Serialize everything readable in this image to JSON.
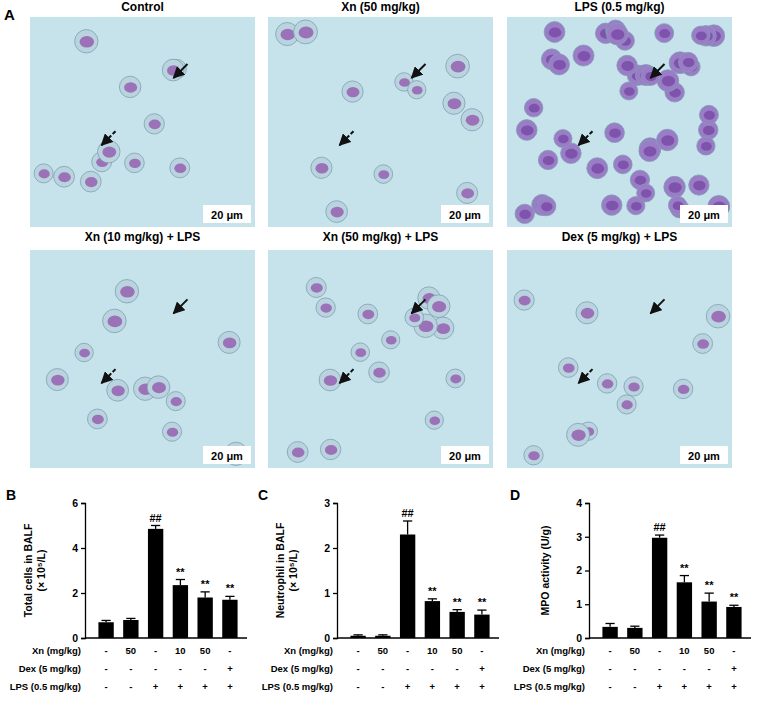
{
  "panel_a": {
    "label": "A",
    "scale_bar": "20 μm",
    "images": [
      {
        "title": "Control"
      },
      {
        "title": "Xn (50 mg/kg)"
      },
      {
        "title": "LPS (0.5 mg/kg)"
      },
      {
        "title": "Xn (10 mg/kg) + LPS"
      },
      {
        "title": "Xn (50 mg/kg) + LPS"
      },
      {
        "title": "Dex (5 mg/kg) + LPS"
      }
    ]
  },
  "chart_data": [
    {
      "type": "bar",
      "panel_label": "B",
      "y_label": [
        "Total cells in BALF",
        "(× 10⁵/L)"
      ],
      "categories": [
        null,
        null,
        null,
        null,
        null,
        null
      ],
      "values": [
        0.7,
        0.8,
        4.85,
        2.35,
        1.8,
        1.7
      ],
      "errors": [
        0.08,
        0.07,
        0.15,
        0.25,
        0.25,
        0.15
      ],
      "annotations": [
        null,
        null,
        "##",
        "**",
        "**",
        "**"
      ],
      "treatment_rows": [
        {
          "label": "Xn (mg/kg)",
          "values": [
            "-",
            "50",
            "-",
            "10",
            "50",
            "-"
          ]
        },
        {
          "label": "Dex (5 mg/kg)",
          "values": [
            "-",
            "-",
            "-",
            "-",
            "-",
            "+"
          ]
        },
        {
          "label": "LPS (0.5 mg/kg)",
          "values": [
            "-",
            "-",
            "+",
            "+",
            "+",
            "+"
          ]
        }
      ],
      "color": "#000000",
      "ylim": [
        0,
        6
      ],
      "yticks": [
        0,
        2,
        4,
        6
      ],
      "grid": false
    },
    {
      "type": "bar",
      "panel_label": "C",
      "y_label": [
        "Neutrophil in BALF",
        "(× 10⁵/L)"
      ],
      "categories": [
        null,
        null,
        null,
        null,
        null,
        null
      ],
      "values": [
        0.05,
        0.05,
        2.3,
        0.82,
        0.58,
        0.52
      ],
      "errors": [
        0.02,
        0.02,
        0.3,
        0.05,
        0.05,
        0.1
      ],
      "annotations": [
        null,
        null,
        "##",
        "**",
        "**",
        "**"
      ],
      "treatment_rows": [
        {
          "label": "Xn (mg/kg)",
          "values": [
            "-",
            "50",
            "-",
            "10",
            "50",
            "-"
          ]
        },
        {
          "label": "Dex (5 mg/kg)",
          "values": [
            "-",
            "-",
            "-",
            "-",
            "-",
            "+"
          ]
        },
        {
          "label": "LPS (0.5 mg/kg)",
          "values": [
            "-",
            "-",
            "+",
            "+",
            "+",
            "+"
          ]
        }
      ],
      "color": "#000000",
      "ylim": [
        0,
        3
      ],
      "yticks": [
        0,
        1,
        2,
        3
      ],
      "grid": false
    },
    {
      "type": "bar",
      "panel_label": "D",
      "y_label": [
        "MPO activity (U/g)"
      ],
      "categories": [
        null,
        null,
        null,
        null,
        null,
        null
      ],
      "values": [
        0.33,
        0.3,
        2.97,
        1.65,
        1.08,
        0.92
      ],
      "errors": [
        0.1,
        0.05,
        0.08,
        0.2,
        0.25,
        0.05
      ],
      "annotations": [
        null,
        null,
        "##",
        "**",
        "**",
        "**"
      ],
      "treatment_rows": [
        {
          "label": "Xn (mg/kg)",
          "values": [
            "-",
            "50",
            "-",
            "10",
            "50",
            "-"
          ]
        },
        {
          "label": "Dex (5 mg/kg)",
          "values": [
            "-",
            "-",
            "-",
            "-",
            "-",
            "+"
          ]
        },
        {
          "label": "LPS (0.5 mg/kg)",
          "values": [
            "-",
            "-",
            "+",
            "+",
            "+",
            "+"
          ]
        }
      ],
      "color": "#000000",
      "ylim": [
        0,
        4
      ],
      "yticks": [
        0,
        1,
        2,
        3,
        4
      ],
      "grid": false
    }
  ]
}
